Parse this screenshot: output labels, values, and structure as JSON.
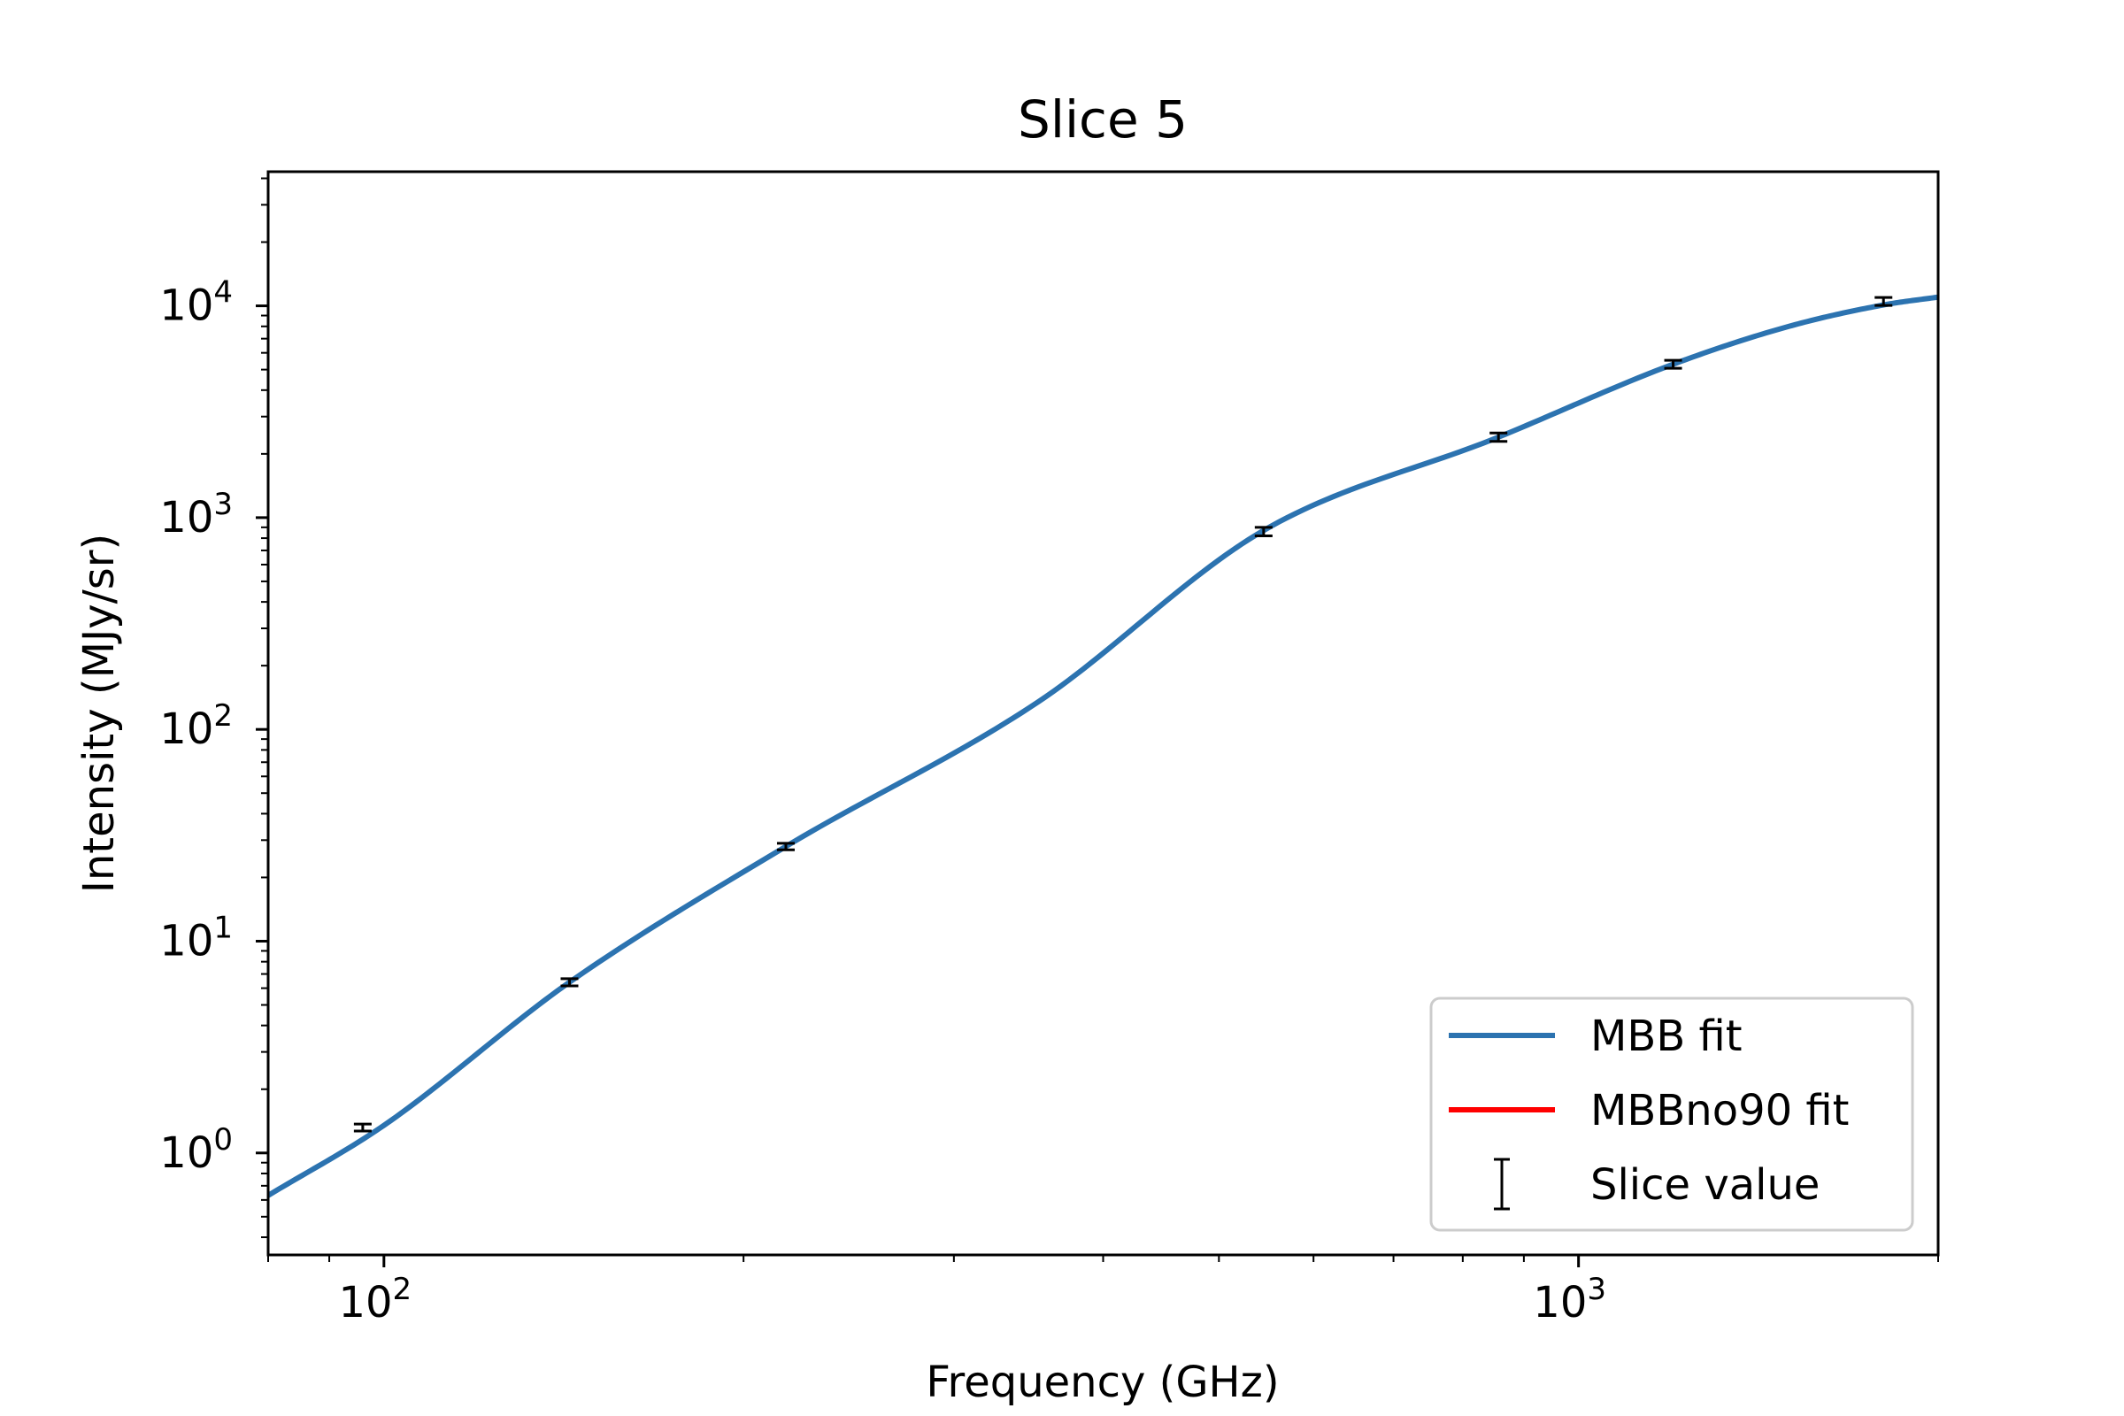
{
  "chart_data": {
    "type": "line",
    "title": "Slice 5",
    "xlabel": "Frequency (GHz)",
    "ylabel": "Intensity (MJy/sr)",
    "xscale": "log",
    "yscale": "log",
    "xlim": [
      80,
      2000
    ],
    "ylim": [
      0.33,
      43000
    ],
    "grid": false,
    "legend_position": "bottom-right",
    "x_ticks": [
      {
        "value": 100,
        "base": "10",
        "exp": "2"
      },
      {
        "value": 1000,
        "base": "10",
        "exp": "3"
      }
    ],
    "y_ticks": [
      {
        "value": 1,
        "base": "10",
        "exp": "0"
      },
      {
        "value": 10,
        "base": "10",
        "exp": "1"
      },
      {
        "value": 100,
        "base": "10",
        "exp": "2"
      },
      {
        "value": 1000,
        "base": "10",
        "exp": "3"
      },
      {
        "value": 10000,
        "base": "10",
        "exp": "4"
      }
    ],
    "series": [
      {
        "name": "MBB fit",
        "kind": "line",
        "color": "#2c73b0",
        "x": [
          80,
          100,
          143,
          217,
          353,
          545,
          857,
          1200,
          1500,
          1800,
          2000
        ],
        "y": [
          0.63,
          1.35,
          6.4,
          28.0,
          135,
          870,
          2400,
          5300,
          8000,
          10100,
          11000
        ]
      },
      {
        "name": "MBBno90 fit",
        "kind": "line",
        "color": "#ff0000",
        "x": [],
        "y": []
      },
      {
        "name": "Slice value",
        "kind": "errorbar",
        "color": "#000000",
        "x": [
          96,
          143,
          217,
          545,
          857,
          1200,
          1800
        ],
        "y": [
          1.32,
          6.4,
          28.0,
          860,
          2400,
          5300,
          10500
        ],
        "yerr": [
          0.05,
          0.25,
          1.0,
          40,
          110,
          230,
          450
        ]
      }
    ]
  }
}
